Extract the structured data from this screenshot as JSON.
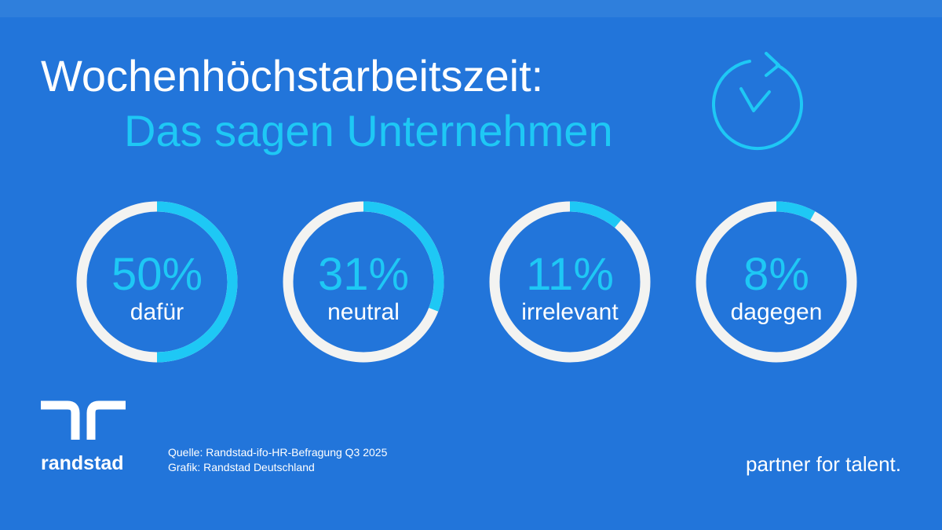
{
  "chart_data": {
    "type": "donut",
    "title": "Wochenhöchstarbeitszeit:",
    "subtitle": "Das sagen Unternehmen",
    "categories": [
      "dafür",
      "neutral",
      "irrelevant",
      "dagegen"
    ],
    "values": [
      50,
      31,
      11,
      8
    ],
    "value_labels": [
      "50%",
      "31%",
      "11%",
      "8%"
    ],
    "color": "#1ec8f5",
    "track_color": "#f3f3f1"
  },
  "footer": {
    "logo": "randstad",
    "source": [
      "Quelle: Randstad-ifo-HR-Befragung Q3 2025",
      "Grafik: Randstad Deutschland"
    ],
    "tagline": "partner for talent."
  }
}
